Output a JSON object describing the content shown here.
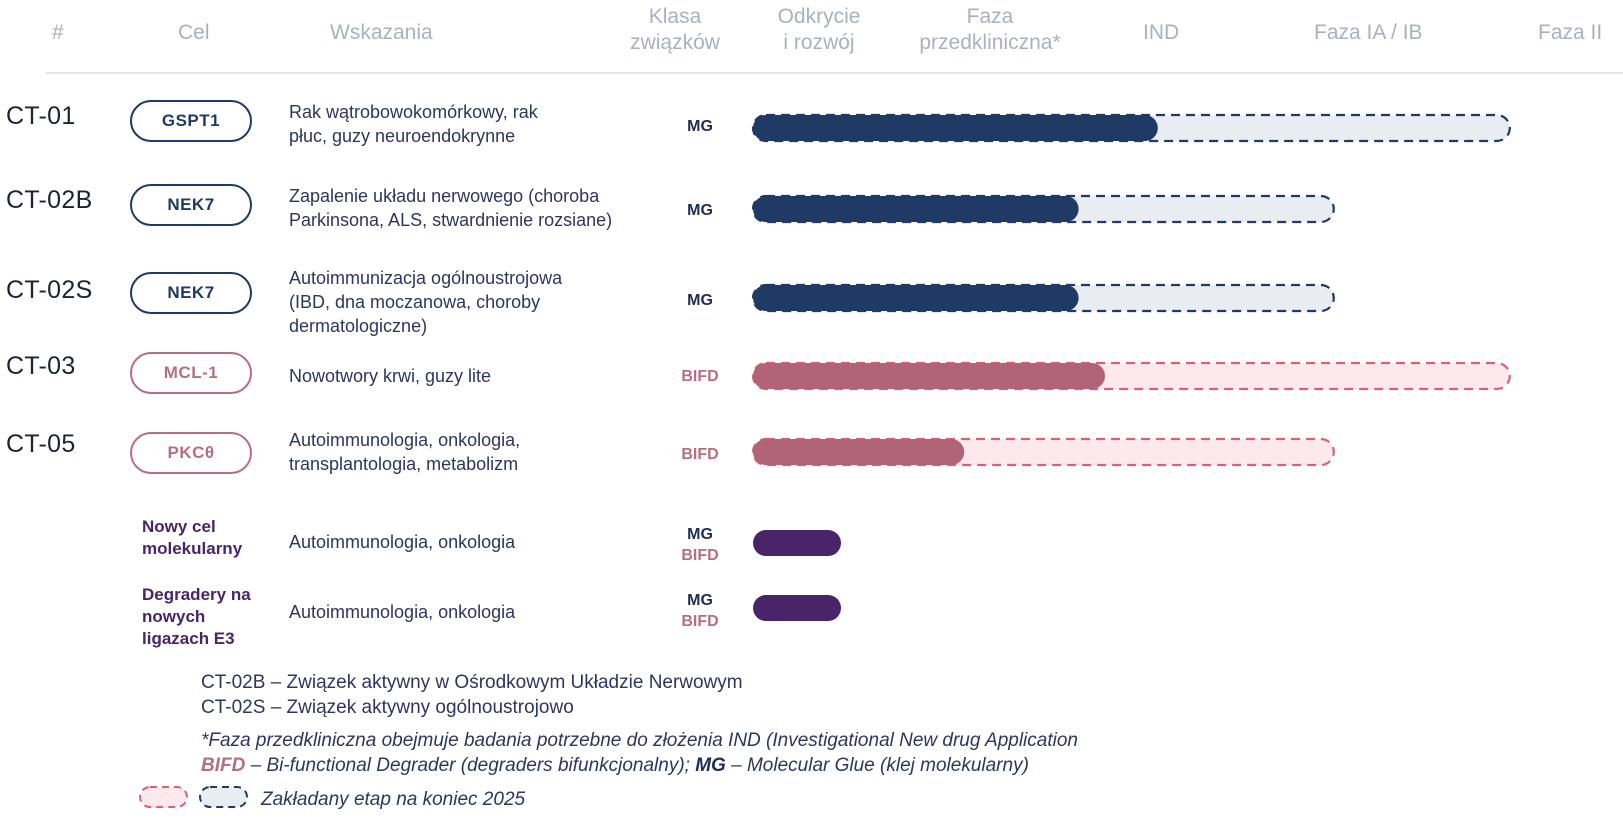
{
  "headers": {
    "num": "#",
    "target": "Cel",
    "indications": "Wskazania",
    "class_l1": "Klasa",
    "class_l2": "związków",
    "discovery_l1": "Odkrycie",
    "discovery_l2": "i rozwój",
    "preclinical_l1": "Faza",
    "preclinical_l2": "przedkliniczna*",
    "ind": "IND",
    "phase1": "Faza IA / IB",
    "phase2": "Faza II"
  },
  "colors": {
    "mg_bar": "#1f3a64",
    "bifd_bar": "#b06476",
    "new_bar": "#4a2468",
    "mg_planned_fill": "#e9ecf1",
    "bifd_planned_fill": "#fbe9ee",
    "mg_dash": "#1f3a64",
    "bifd_dash": "#d9607c"
  },
  "rows": [
    {
      "id": "CT-01",
      "target": "GSPT1",
      "ind_l1": "Rak wątrobowokomórkowy, rak",
      "ind_l2": "płuc, guzy neuroendokrynne",
      "ind_l3": "",
      "class_1": "MG",
      "class_2": ""
    },
    {
      "id": "CT-02B",
      "target": "NEK7",
      "ind_l1": "Zapalenie układu nerwowego (choroba",
      "ind_l2": "Parkinsona, ALS, stwardnienie rozsiane)",
      "ind_l3": "",
      "class_1": "MG",
      "class_2": ""
    },
    {
      "id": "CT-02S",
      "target": "NEK7",
      "ind_l1": "Autoimmunizacja ogólnoustrojowa",
      "ind_l2": "(IBD, dna moczanowa, choroby",
      "ind_l3": "dermatologiczne)",
      "class_1": "MG",
      "class_2": ""
    },
    {
      "id": "CT-03",
      "target": "MCL-1",
      "ind_l1": "Nowotwory krwi, guzy lite",
      "ind_l2": "",
      "ind_l3": "",
      "class_1": "",
      "class_2": "BIFD"
    },
    {
      "id": "CT-05",
      "target": "PKCθ",
      "ind_l1": "Autoimmunologia, onkologia,",
      "ind_l2": "transplantologia, metabolizm",
      "ind_l3": "",
      "class_1": "",
      "class_2": "BIFD"
    },
    {
      "id": "",
      "target_l1": "Nowy cel",
      "target_l2": "molekularny",
      "target_l3": "",
      "ind_l1": "Autoimmunologia, onkologia",
      "class_1": "MG",
      "class_2": "BIFD"
    },
    {
      "id": "",
      "target_l1": "Degradery na",
      "target_l2": "nowych",
      "target_l3": "ligazach E3",
      "ind_l1": "Autoimmunologia, onkologia",
      "class_1": "MG",
      "class_2": "BIFD"
    }
  ],
  "chart_data": {
    "type": "bar",
    "orientation": "horizontal",
    "stages": [
      "Odkrycie i rozwój",
      "Faza przedkliniczna*",
      "IND",
      "Faza IA / IB",
      "Faza II"
    ],
    "categories": [
      "CT-01",
      "CT-02B",
      "CT-02S",
      "CT-03",
      "CT-05",
      "Nowy cel molekularny",
      "Degradery na nowych ligazach E3"
    ],
    "progress_stage_units": [
      2.3,
      1.85,
      1.85,
      2.0,
      1.2,
      0.5,
      0.5
    ],
    "planned_end_2025_stage_units": [
      4.3,
      3.3,
      3.3,
      4.3,
      3.3,
      null,
      null
    ],
    "class": [
      "MG",
      "MG",
      "MG",
      "BIFD",
      "BIFD",
      "MG/BIFD",
      "MG/BIFD"
    ]
  },
  "legend": {
    "l1": "CT-02B – Związek aktywny w Ośrodkowym Układzie Nerwowym",
    "l2": "CT-02S – Związek aktywny ogólnoustrojowo",
    "l3": "*Faza przedkliniczna obejmuje badania potrzebne do złożenia IND (Investigational New drug Application",
    "l4_bifd": "BIFD",
    "l4_a": " – Bi-functional Degrader (degraders bifunkcjonalny); ",
    "l4_mg": "MG",
    "l4_b": " – Molecular Glue (klej molekularny)",
    "l5": "Zakładany etap na koniec 2025"
  }
}
